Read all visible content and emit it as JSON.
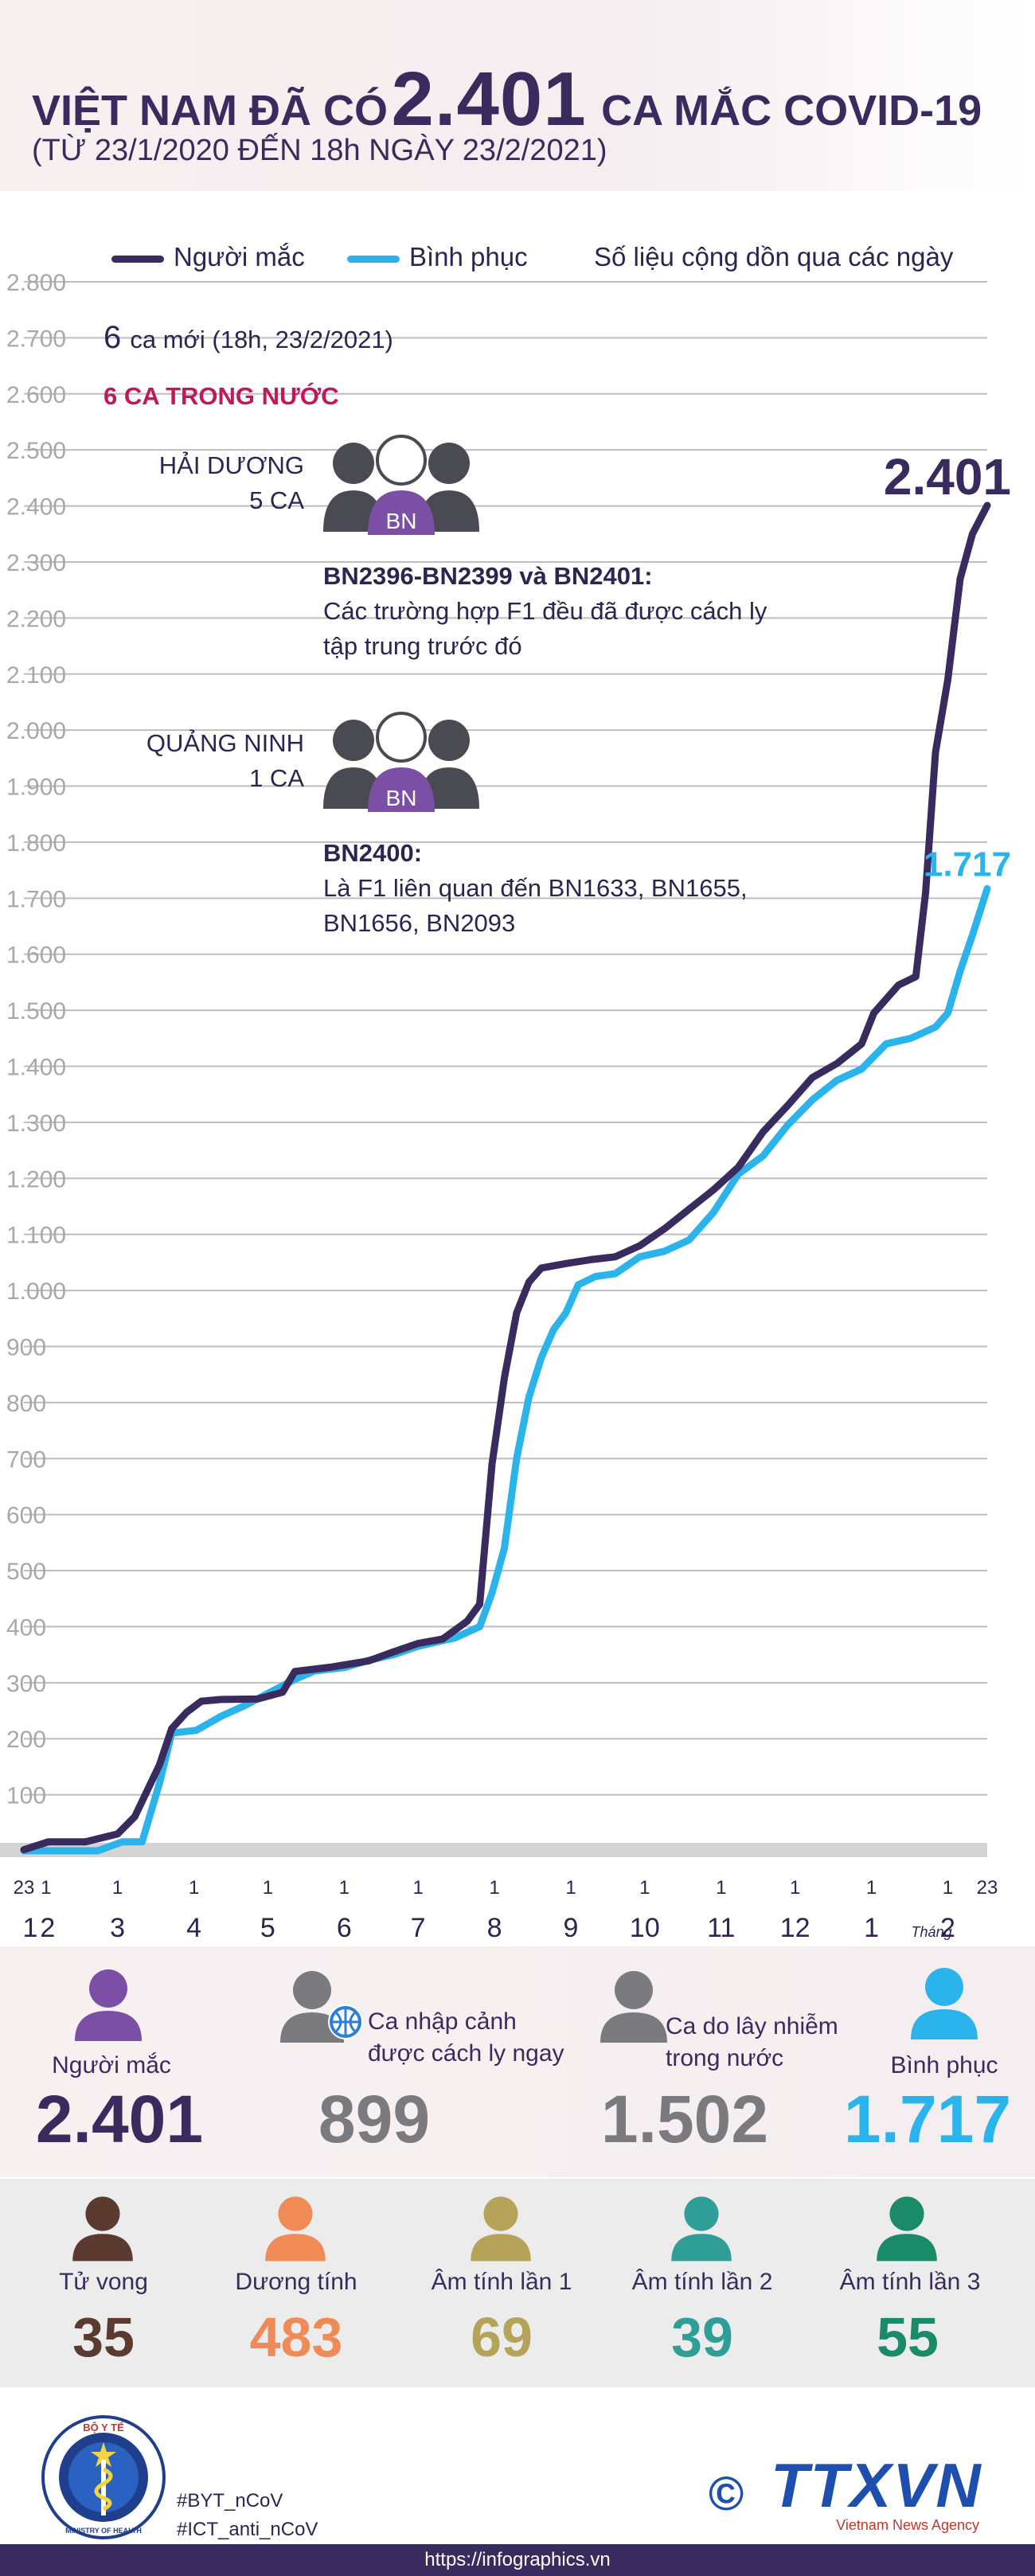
{
  "header": {
    "title_part1": "VIỆT NAM ĐÃ CÓ",
    "title_number": "2.401",
    "title_part2": "CA MẮC COVID-19",
    "subtitle": "(TỪ 23/1/2020 ĐẾN 18h NGÀY 23/2/2021)"
  },
  "legend": {
    "infected": "Người mắc",
    "recovered": "Bình phục",
    "note": "Số liệu cộng dồn qua các ngày"
  },
  "annotation": {
    "new_cases_num": "6",
    "new_cases_text": "ca mới (18h, 23/2/2021)",
    "domestic": "6 CA TRONG NƯỚC",
    "group1_place": "HẢI DƯƠNG",
    "group1_count": "5 CA",
    "group1_ids": "BN2396-BN2399 và BN2401:",
    "group1_desc_1": "Các trường hợp F1 đều đã được cách ly",
    "group1_desc_2": "tập trung trước đó",
    "group2_place": "QUẢNG NINH",
    "group2_count": "1 CA",
    "group2_ids": "BN2400:",
    "group2_desc_1": "Là F1 liên quan đến BN1633, BN1655,",
    "group2_desc_2": "BN1656, BN2093",
    "bn": "BN"
  },
  "chart_data": {
    "type": "line",
    "xlabel": "",
    "ylabel": "",
    "ylim": [
      0,
      2800
    ],
    "y_ticks": [
      "100",
      "200",
      "300",
      "400",
      "500",
      "600",
      "700",
      "800",
      "900",
      "1.000",
      "1.100",
      "1.200",
      "1.300",
      "1.400",
      "1.500",
      "1.600",
      "1.700",
      "1.800",
      "1.900",
      "2.000",
      "2.100",
      "2.200",
      "2.300",
      "2.400",
      "2.500",
      "2.600",
      "2.700",
      "2.800"
    ],
    "x_ticks": [
      {
        "day": "23",
        "month": "1"
      },
      {
        "day": "1",
        "month": "2"
      },
      {
        "day": "1",
        "month": "3"
      },
      {
        "day": "1",
        "month": "4"
      },
      {
        "day": "1",
        "month": "5"
      },
      {
        "day": "1",
        "month": "6"
      },
      {
        "day": "1",
        "month": "7"
      },
      {
        "day": "1",
        "month": "8"
      },
      {
        "day": "1",
        "month": "9"
      },
      {
        "day": "1",
        "month": "10"
      },
      {
        "day": "1",
        "month": "11"
      },
      {
        "day": "1",
        "month": "12"
      },
      {
        "day": "1",
        "month": "1"
      },
      {
        "day": "1",
        "month": "2"
      },
      {
        "day": "23",
        "month": ""
      }
    ],
    "year_2020": "2020",
    "year_2021": "2021",
    "month_word": "Tháng",
    "series": [
      {
        "name": "Người mắc",
        "color": "#3a2b5e",
        "end_label": "2.401",
        "points": [
          [
            0,
            2
          ],
          [
            10,
            16
          ],
          [
            15,
            16
          ],
          [
            25,
            16
          ],
          [
            38,
            30
          ],
          [
            45,
            61
          ],
          [
            55,
            153
          ],
          [
            60,
            218
          ],
          [
            66,
            247
          ],
          [
            72,
            267
          ],
          [
            80,
            270
          ],
          [
            95,
            271
          ],
          [
            105,
            283
          ],
          [
            110,
            320
          ],
          [
            125,
            328
          ],
          [
            140,
            339
          ],
          [
            150,
            355
          ],
          [
            160,
            370
          ],
          [
            170,
            378
          ],
          [
            180,
            410
          ],
          [
            185,
            440
          ],
          [
            190,
            690
          ],
          [
            195,
            844
          ],
          [
            200,
            960
          ],
          [
            205,
            1015
          ],
          [
            210,
            1040
          ],
          [
            220,
            1048
          ],
          [
            230,
            1055
          ],
          [
            240,
            1060
          ],
          [
            250,
            1080
          ],
          [
            260,
            1110
          ],
          [
            270,
            1145
          ],
          [
            280,
            1180
          ],
          [
            290,
            1220
          ],
          [
            300,
            1283
          ],
          [
            310,
            1330
          ],
          [
            320,
            1380
          ],
          [
            330,
            1405
          ],
          [
            340,
            1440
          ],
          [
            345,
            1495
          ],
          [
            350,
            1520
          ],
          [
            355,
            1545
          ],
          [
            362,
            1560
          ],
          [
            366,
            1710
          ],
          [
            370,
            1960
          ],
          [
            375,
            2090
          ],
          [
            380,
            2270
          ],
          [
            385,
            2350
          ],
          [
            391,
            2401
          ]
        ]
      },
      {
        "name": "Bình phục",
        "color": "#2bb4ec",
        "end_label": "1.717",
        "points": [
          [
            0,
            0
          ],
          [
            20,
            0
          ],
          [
            30,
            0
          ],
          [
            40,
            16
          ],
          [
            48,
            16
          ],
          [
            55,
            120
          ],
          [
            60,
            210
          ],
          [
            70,
            215
          ],
          [
            80,
            240
          ],
          [
            90,
            260
          ],
          [
            100,
            283
          ],
          [
            110,
            306
          ],
          [
            118,
            321
          ],
          [
            130,
            327
          ],
          [
            140,
            340
          ],
          [
            150,
            350
          ],
          [
            160,
            365
          ],
          [
            168,
            373
          ],
          [
            175,
            380
          ],
          [
            185,
            400
          ],
          [
            190,
            460
          ],
          [
            195,
            540
          ],
          [
            200,
            700
          ],
          [
            205,
            810
          ],
          [
            210,
            880
          ],
          [
            215,
            930
          ],
          [
            220,
            960
          ],
          [
            225,
            1010
          ],
          [
            232,
            1025
          ],
          [
            240,
            1030
          ],
          [
            250,
            1060
          ],
          [
            260,
            1070
          ],
          [
            270,
            1090
          ],
          [
            280,
            1140
          ],
          [
            290,
            1208
          ],
          [
            300,
            1240
          ],
          [
            310,
            1295
          ],
          [
            320,
            1340
          ],
          [
            330,
            1375
          ],
          [
            340,
            1395
          ],
          [
            350,
            1440
          ],
          [
            360,
            1450
          ],
          [
            370,
            1470
          ],
          [
            375,
            1495
          ],
          [
            380,
            1570
          ],
          [
            385,
            1634
          ],
          [
            391,
            1717
          ]
        ]
      }
    ]
  },
  "stats_row1": [
    {
      "label": "Người mắc",
      "value": "2.401",
      "color": "#3a2b5e"
    },
    {
      "label_1": "Ca nhập cảnh",
      "label_2": "được cách ly ngay",
      "value": "899",
      "color": "#7a7a7f"
    },
    {
      "label_1": "Ca do lây nhiễm",
      "label_2": "trong nước",
      "value": "1.502",
      "color": "#7a7a7f"
    },
    {
      "label": "Bình phục",
      "value": "1.717",
      "color": "#2bb4ec"
    }
  ],
  "stats_row2": [
    {
      "label": "Tử vong",
      "value": "35",
      "color": "#5b3a2f"
    },
    {
      "label": "Dương tính",
      "value": "483",
      "color": "#f08a56"
    },
    {
      "label": "Âm tính lần 1",
      "value": "69",
      "color": "#b6a35a"
    },
    {
      "label": "Âm tính lần 2",
      "value": "39",
      "color": "#2f9e97"
    },
    {
      "label": "Âm tính lần 3",
      "value": "55",
      "color": "#1a8a68"
    }
  ],
  "footer": {
    "hashtag1": "#BYT_nCoV",
    "hashtag2": "#ICT_anti_nCoV",
    "url": "https://infographics.vn",
    "logo_text": "TTXVN",
    "logo_sub": "Vietnam News Agency",
    "ministry_top": "BỘ Y TẾ",
    "ministry_bottom": "MINISTRY OF HEALTH",
    "copyright": "©"
  }
}
